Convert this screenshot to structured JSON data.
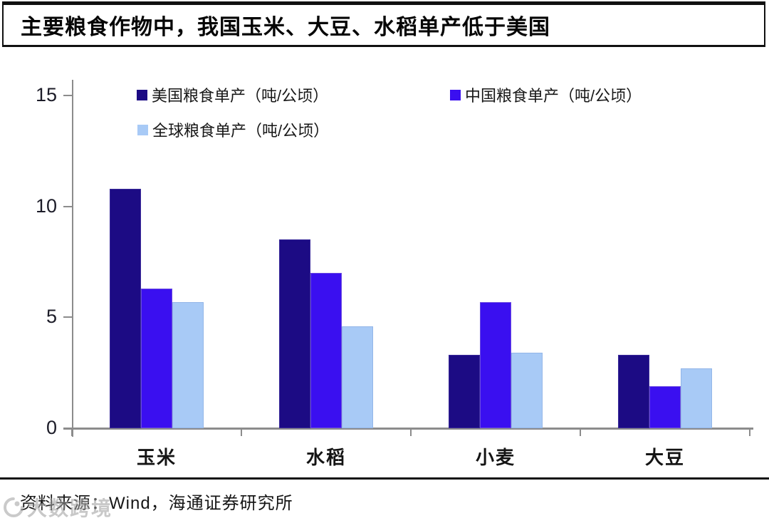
{
  "title": "主要粮食作物中，我国玉米、大豆、水稻单产低于美国",
  "source_note": "资料来源：Wind，海通证券研究所",
  "watermark_text": "大数跨境",
  "colors": {
    "us_series": "#1C0B84",
    "china_series": "#3A0FF0",
    "global_series": "#A8CAF6",
    "axis": "#8c8c8c",
    "title_text": "#050505",
    "border": "#111111"
  },
  "chart_data": {
    "type": "bar",
    "title": "主要粮食作物中，我国玉米、大豆、水稻单产低于美国",
    "categories": [
      "玉米",
      "水稻",
      "小麦",
      "大豆"
    ],
    "series": [
      {
        "name": "美国粮食单产（吨/公顷）",
        "color": "#1C0B84",
        "border": "#3A2A9A",
        "values": [
          10.8,
          8.5,
          3.3,
          3.3
        ]
      },
      {
        "name": "中国粮食单产（吨/公顷）",
        "color": "#3A0FF0",
        "border": "#6A4AE0",
        "values": [
          6.3,
          7.0,
          5.7,
          1.9
        ]
      },
      {
        "name": "全球粮食单产（吨/公顷）",
        "color": "#A8CAF6",
        "border": "#93B6E8",
        "values": [
          5.7,
          4.6,
          3.4,
          2.7
        ]
      }
    ],
    "xlabel": "",
    "ylabel": "",
    "ylim": [
      0,
      15
    ],
    "yticks": [
      0,
      5,
      10,
      15
    ],
    "legend_position": "top-left, two rows",
    "grid": false
  }
}
